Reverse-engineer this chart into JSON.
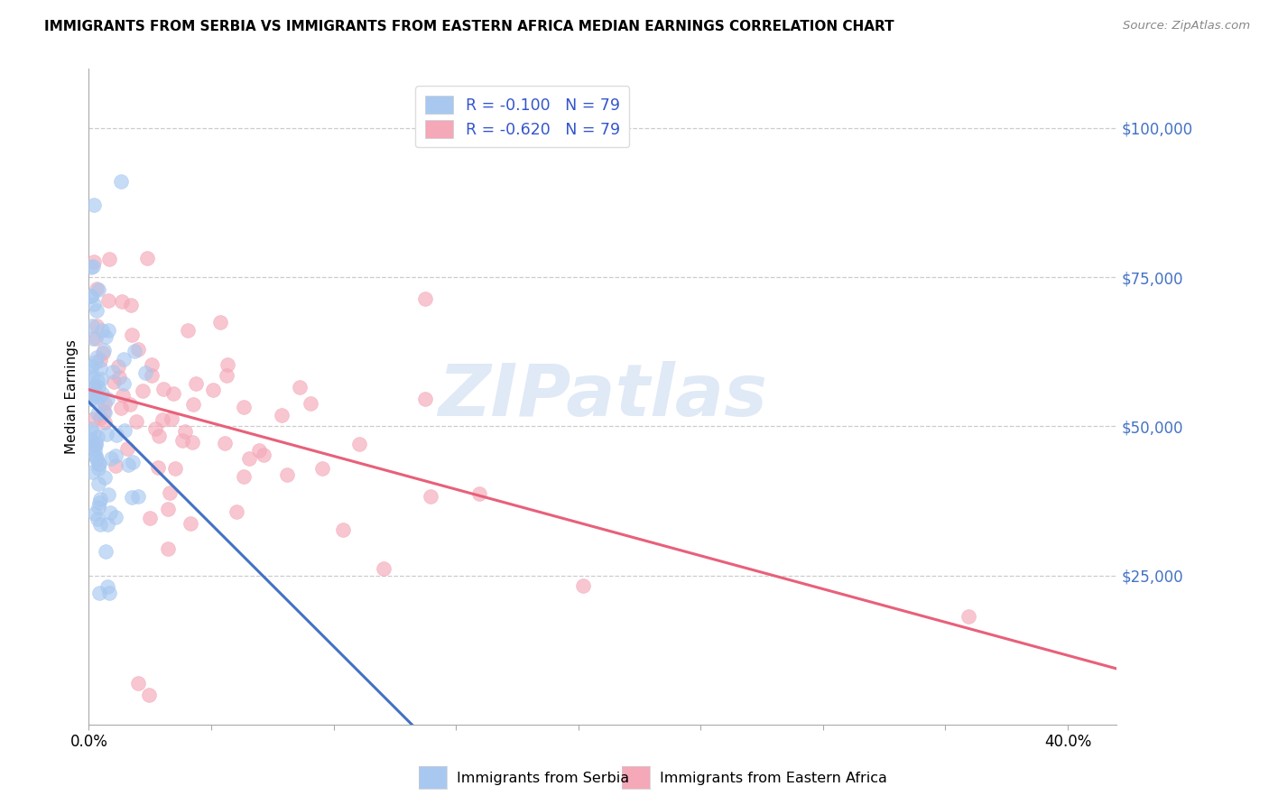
{
  "title": "IMMIGRANTS FROM SERBIA VS IMMIGRANTS FROM EASTERN AFRICA MEDIAN EARNINGS CORRELATION CHART",
  "source": "Source: ZipAtlas.com",
  "ylabel": "Median Earnings",
  "serbia_color": "#a8c8f0",
  "serbia_edge_color": "#a8c8f0",
  "eastern_africa_color": "#f4a8b8",
  "eastern_africa_edge_color": "#f4a8b8",
  "serbia_line_color": "#4472c4",
  "eastern_africa_line_color": "#e8607a",
  "serbia_dash_color": "#a0b8d8",
  "watermark_color": "#c8d8f0",
  "watermark": "ZIPatlas",
  "right_tick_color": "#4472c4",
  "serbia_R": -0.1,
  "eastern_africa_R": -0.62,
  "N": 79,
  "xlim": [
    0.0,
    0.42
  ],
  "ylim": [
    0,
    110000
  ],
  "serbia_line_intercept": 52000,
  "serbia_line_slope": -80000,
  "eastern_africa_line_intercept": 56000,
  "eastern_africa_line_slope": -110000,
  "legend_R_color": "#3355cc",
  "legend_N_color": "#3355cc"
}
